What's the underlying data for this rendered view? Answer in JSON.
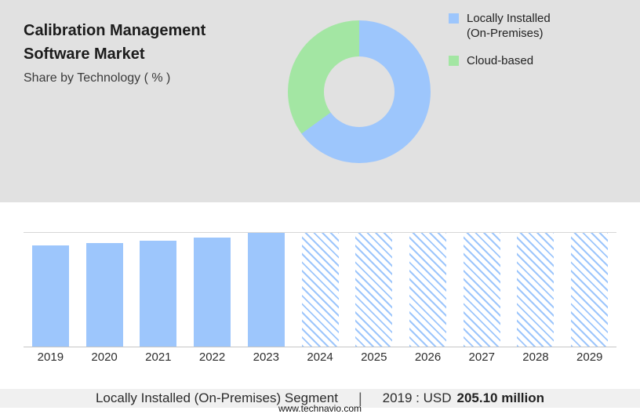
{
  "header": {
    "title_line1": "Calibration Management",
    "title_line2": "Software Market",
    "subtitle": "Share by Technology ( % )"
  },
  "legend": {
    "items": [
      {
        "line1": "Locally Installed",
        "line2": "(On-Premises)",
        "color": "#9DC6FC"
      },
      {
        "line1": "Cloud-based",
        "line2": "",
        "color": "#A3E6A3"
      }
    ]
  },
  "chart_data": [
    {
      "type": "pie",
      "subtype": "donut",
      "title": "Share by Technology ( % )",
      "labels": [
        "Locally Installed (On-Premises)",
        "Cloud-based"
      ],
      "values": [
        65,
        35
      ],
      "unit": "%",
      "colors": [
        "#9DC6FC",
        "#A3E6A3"
      ],
      "start_angle_deg": 0,
      "direction": "clockwise",
      "note": "Percent split estimated from arc angles; no numeric labels printed on chart"
    },
    {
      "type": "bar",
      "categories": [
        "2019",
        "2020",
        "2021",
        "2022",
        "2023",
        "2024",
        "2025",
        "2026",
        "2027",
        "2028",
        "2029"
      ],
      "series": [
        {
          "name": "Locally Installed (On-Premises) segment size",
          "values": [
            0.89,
            0.91,
            0.93,
            0.96,
            1.0,
            1.0,
            1.0,
            1.0,
            1.0,
            1.0,
            1.0
          ],
          "values_unit": "relative bar height (no y-axis shown)",
          "bar_styles": [
            "solid",
            "solid",
            "solid",
            "solid",
            "solid",
            "hatched",
            "hatched",
            "hatched",
            "hatched",
            "hatched",
            "hatched"
          ]
        }
      ],
      "known_values": [
        {
          "category": "2019",
          "value": "USD 205.10 million"
        }
      ],
      "forecast_start_category": "2024",
      "bar_color": "#9DC6FC",
      "hatch_background": "#FFFFFF",
      "grid": "top and bottom horizontal lines only",
      "legend_position": "none",
      "xlabel": "",
      "ylabel": ""
    }
  ],
  "footer": {
    "segment_label": "Locally Installed (On-Premises) Segment",
    "separator": "|",
    "value_prefix": "2019 : USD",
    "value_bold": "205.10 million",
    "website": "www.technavio.com"
  },
  "colors": {
    "top_background": "#E1E1E1",
    "bottom_background": "#FFFFFF",
    "caption_background": "#F0F0F0",
    "grid_line": "#D7D7D7",
    "axis_line": "#C6C6C6"
  }
}
